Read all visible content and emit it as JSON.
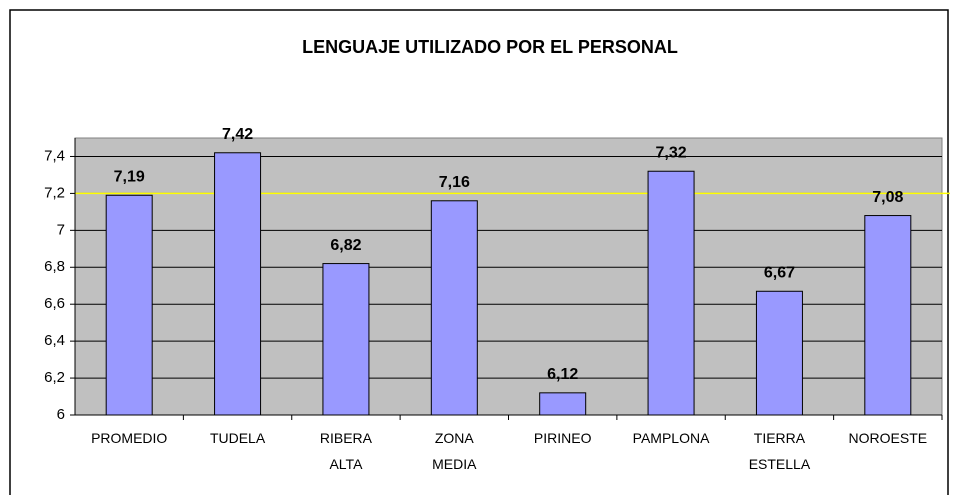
{
  "chart_data": {
    "type": "bar",
    "title": "LENGUAJE UTILIZADO POR EL PERSONAL",
    "categories": [
      "PROMEDIO",
      "TUDELA",
      "RIBERA ALTA",
      "ZONA MEDIA",
      "PIRINEO",
      "PAMPLONA",
      "TIERRA ESTELLA",
      "NOROESTE"
    ],
    "values": [
      7.19,
      7.42,
      6.82,
      7.16,
      6.12,
      7.32,
      6.67,
      7.08
    ],
    "value_labels": [
      "7,19",
      "7,42",
      "6,82",
      "7,16",
      "6,12",
      "7,32",
      "6,67",
      "7,08"
    ],
    "color": "#9999ff",
    "ylim": [
      6,
      7.5
    ],
    "yticks": [
      6,
      {
        "value": 6.2,
        "label": "6,2"
      },
      {
        "value": 6.4,
        "label": "6,4"
      },
      {
        "value": 6.6,
        "label": "6,6"
      },
      {
        "value": 6.8,
        "label": "6,8"
      },
      7,
      {
        "value": 7.2,
        "label": "7,2"
      },
      {
        "value": 7.4,
        "label": "7,4"
      }
    ],
    "grid": true,
    "reference_line": {
      "value": 7.2,
      "color": "#ffff00"
    }
  }
}
